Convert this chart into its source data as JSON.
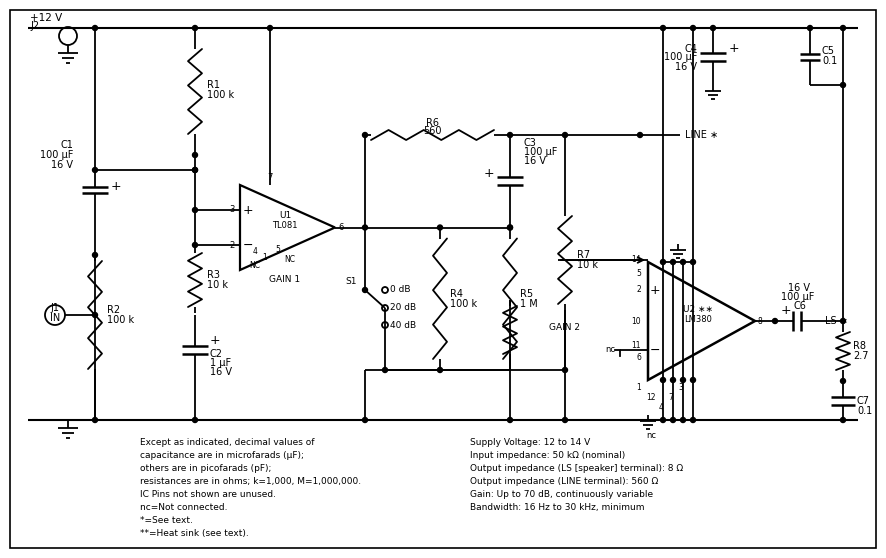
{
  "background_color": "#ffffff",
  "line_color": "#000000",
  "figsize": [
    8.86,
    5.58
  ],
  "dpi": 100,
  "notes_left": [
    "Except as indicated, decimal values of",
    "capacitance are in microfarads (μF);",
    "others are in picofarads (pF);",
    "resistances are in ohms; k=1,000, M=1,000,000.",
    "IC Pins not shown are unused.",
    "nc=Not connected.",
    "*=See text.",
    "**=Heat sink (see text)."
  ],
  "notes_right": [
    "Supply Voltage: 12 to 14 V",
    "Input impedance: 50 kΩ (nominal)",
    "Output impedance (LS [speaker] terminal): 8 Ω",
    "Output impedance (LINE terminal): 560 Ω",
    "Gain: Up to 70 dB, continuously variable",
    "Bandwidth: 16 Hz to 30 kHz, minimum"
  ]
}
